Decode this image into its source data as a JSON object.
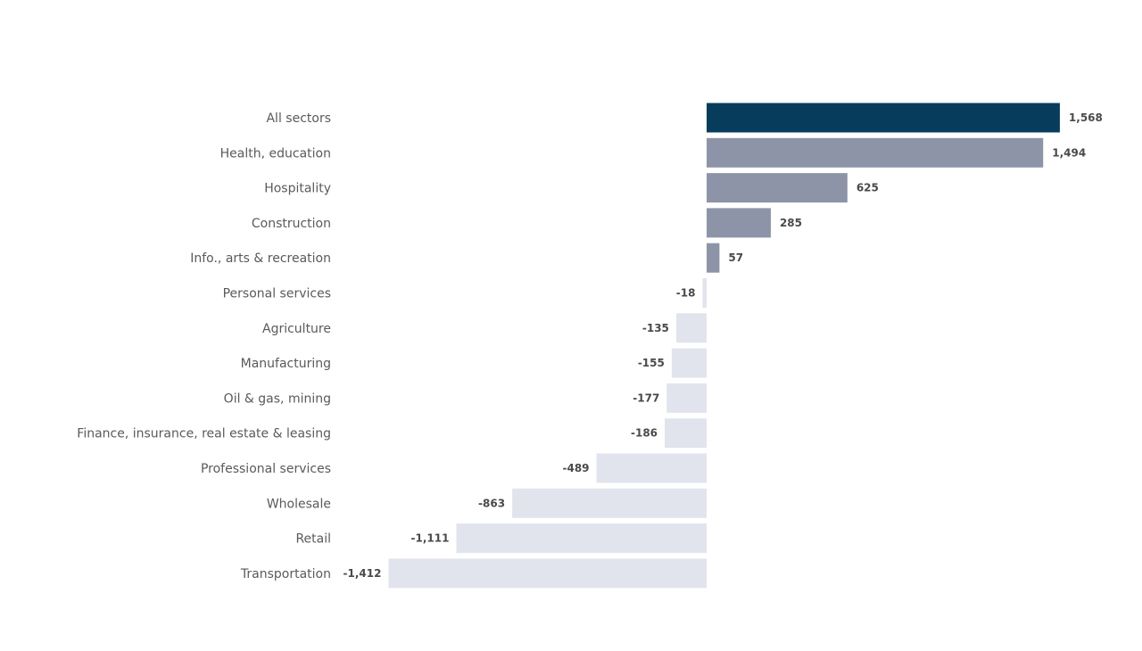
{
  "chart_data": {
    "type": "bar",
    "orientation": "horizontal",
    "title": "",
    "xlabel": "",
    "ylabel": "",
    "grid": false,
    "legend": "none",
    "categories": [
      "All sectors",
      "Health, education",
      "Hospitality",
      "Construction",
      "Info., arts & recreation",
      "Personal services",
      "Agriculture",
      "Manufacturing",
      "Oil & gas, mining",
      "Finance, insurance, real estate & leasing",
      "Professional services",
      "Wholesale",
      "Retail",
      "Transportation"
    ],
    "values": [
      1568,
      1494,
      625,
      285,
      57,
      -18,
      -135,
      -155,
      -177,
      -186,
      -489,
      -863,
      -1111,
      -1412
    ],
    "value_labels": [
      "1,568",
      "1,494",
      "625",
      "285",
      "57",
      "-18",
      "-135",
      "-155",
      "-177",
      "-186",
      "-489",
      "-863",
      "-1,111",
      "-1,412"
    ],
    "xlim": [
      -1412,
      1568
    ],
    "colors": {
      "total": "#083c5d",
      "positive": "#8e94a8",
      "negative": "#e1e4ec"
    }
  }
}
